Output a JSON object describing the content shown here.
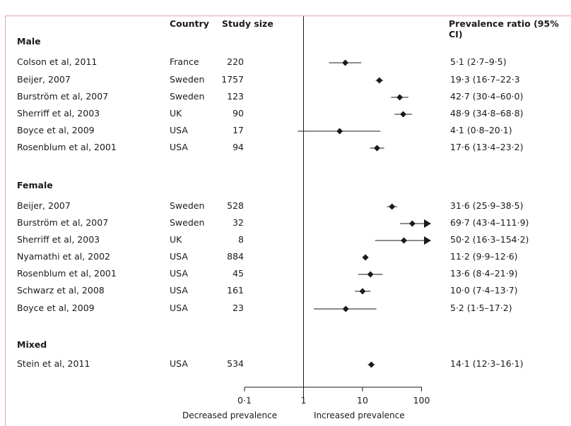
{
  "headers": {
    "study": "",
    "country": "Country",
    "size": "Study size",
    "ratio": "Prevalence ratio (95% CI)"
  },
  "groups": [
    "Male",
    "Female",
    "Mixed"
  ],
  "axis": {
    "ticks": [
      {
        "value": 0.1,
        "label": "0·1"
      },
      {
        "value": 1,
        "label": "1"
      },
      {
        "value": 10,
        "label": "10"
      },
      {
        "value": 100,
        "label": "100"
      }
    ],
    "left_label": "Decreased prevalence",
    "right_label": "Increased prevalence"
  },
  "chart_data": {
    "type": "scatter",
    "xscale": "log",
    "xlim": [
      0.1,
      100
    ],
    "reference_line": 1,
    "rows": [
      {
        "group": "Male",
        "study": "Colson et al, 2011",
        "country": "France",
        "size": "220",
        "est": 5.1,
        "lo": 2.7,
        "hi": 9.5,
        "text": "5·1 (2·7–9·5)"
      },
      {
        "group": "Male",
        "study": "Beijer, 2007",
        "country": "Sweden",
        "size": "1757",
        "est": 19.3,
        "lo": 16.7,
        "hi": 22.3,
        "text": "19·3 (16·7–22·3"
      },
      {
        "group": "Male",
        "study": "Burström et al, 2007",
        "country": "Sweden",
        "size": "123",
        "est": 42.7,
        "lo": 30.4,
        "hi": 60.0,
        "text": "42·7 (30·4–60·0)"
      },
      {
        "group": "Male",
        "study": "Sherriff et al, 2003",
        "country": "UK",
        "size": "90",
        "est": 48.9,
        "lo": 34.8,
        "hi": 68.8,
        "text": "48·9 (34·8–68·8)"
      },
      {
        "group": "Male",
        "study": "Boyce et al, 2009",
        "country": "USA",
        "size": "17",
        "est": 4.1,
        "lo": 0.8,
        "hi": 20.1,
        "text": "4·1 (0·8–20·1)"
      },
      {
        "group": "Male",
        "study": "Rosenblum et al, 2001",
        "country": "USA",
        "size": "94",
        "est": 17.6,
        "lo": 13.4,
        "hi": 23.2,
        "text": "17·6 (13·4–23·2)"
      },
      {
        "group": "Female",
        "study": "Beijer, 2007",
        "country": "Sweden",
        "size": "528",
        "est": 31.6,
        "lo": 25.9,
        "hi": 38.5,
        "text": "31·6 (25·9–38·5)"
      },
      {
        "group": "Female",
        "study": "Burström et al, 2007",
        "country": "Sweden",
        "size": "32",
        "est": 69.7,
        "lo": 43.4,
        "hi": 111.9,
        "text": "69·7 (43·4–111·9)"
      },
      {
        "group": "Female",
        "study": "Sherriff et al, 2003",
        "country": "UK",
        "size": "8",
        "est": 50.2,
        "lo": 16.3,
        "hi": 154.2,
        "text": "50·2 (16·3–154·2)"
      },
      {
        "group": "Female",
        "study": "Nyamathi et al, 2002",
        "country": "USA",
        "size": "884",
        "est": 11.2,
        "lo": 9.9,
        "hi": 12.6,
        "text": "11·2 (9·9–12·6)"
      },
      {
        "group": "Female",
        "study": "Rosenblum et al, 2001",
        "country": "USA",
        "size": "45",
        "est": 13.6,
        "lo": 8.4,
        "hi": 21.9,
        "text": "13·6 (8·4–21·9)"
      },
      {
        "group": "Female",
        "study": "Schwarz et al, 2008",
        "country": "USA",
        "size": "161",
        "est": 10.0,
        "lo": 7.4,
        "hi": 13.7,
        "text": "10·0 (7·4–13·7)"
      },
      {
        "group": "Female",
        "study": "Boyce et al, 2009",
        "country": "USA",
        "size": "23",
        "est": 5.2,
        "lo": 1.5,
        "hi": 17.2,
        "text": "5·2 (1·5–17·2)"
      },
      {
        "group": "Mixed",
        "study": "Stein et al, 2011",
        "country": "USA",
        "size": "534",
        "est": 14.1,
        "lo": 12.3,
        "hi": 16.1,
        "text": "14·1 (12·3–16·1)"
      }
    ]
  }
}
